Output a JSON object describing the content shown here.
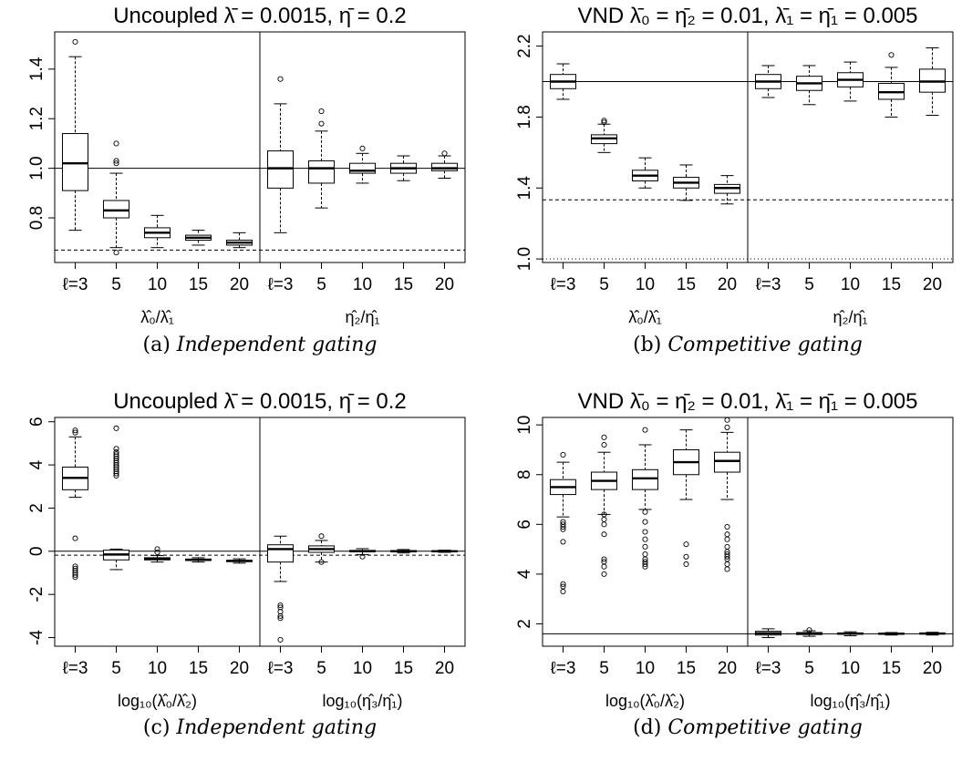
{
  "chart_data": [
    {
      "type": "boxplot",
      "title": "Uncoupled λ̄ = 0.0015, η̄ = 0.2",
      "caption": {
        "prefix": "(a)",
        "text": "Independent gating"
      },
      "ylim": [
        0.62,
        1.55
      ],
      "yticks": [
        "0.8",
        "1.0",
        "1.2",
        "1.4"
      ],
      "hlines": {
        "solid": 1.0,
        "dashed": 0.67,
        "dotted": null
      },
      "groups": [
        {
          "label": "λ̂₀/λ̂₁",
          "categories": [
            "ℓ=3",
            "5",
            "10",
            "15",
            "20"
          ],
          "boxes": [
            {
              "min": 0.75,
              "q1": 0.91,
              "median": 1.02,
              "q3": 1.14,
              "max": 1.45,
              "outliers": [
                1.51
              ]
            },
            {
              "min": 0.68,
              "q1": 0.8,
              "median": 0.83,
              "q3": 0.87,
              "max": 0.98,
              "outliers": [
                1.1,
                1.03,
                1.02,
                0.66
              ]
            },
            {
              "min": 0.68,
              "q1": 0.72,
              "median": 0.74,
              "q3": 0.76,
              "max": 0.81,
              "outliers": []
            },
            {
              "min": 0.69,
              "q1": 0.71,
              "median": 0.72,
              "q3": 0.73,
              "max": 0.75,
              "outliers": []
            },
            {
              "min": 0.68,
              "q1": 0.69,
              "median": 0.7,
              "q3": 0.71,
              "max": 0.74,
              "outliers": []
            }
          ]
        },
        {
          "label": "η̂₂/η̂₁",
          "categories": [
            "ℓ=3",
            "5",
            "10",
            "15",
            "20"
          ],
          "boxes": [
            {
              "min": 0.74,
              "q1": 0.92,
              "median": 1.0,
              "q3": 1.07,
              "max": 1.26,
              "outliers": [
                1.36
              ]
            },
            {
              "min": 0.84,
              "q1": 0.94,
              "median": 1.0,
              "q3": 1.03,
              "max": 1.15,
              "outliers": [
                1.23,
                1.18
              ]
            },
            {
              "min": 0.94,
              "q1": 0.98,
              "median": 0.99,
              "q3": 1.02,
              "max": 1.06,
              "outliers": [
                1.08
              ]
            },
            {
              "min": 0.95,
              "q1": 0.98,
              "median": 1.0,
              "q3": 1.02,
              "max": 1.05,
              "outliers": []
            },
            {
              "min": 0.96,
              "q1": 0.99,
              "median": 1.0,
              "q3": 1.02,
              "max": 1.05,
              "outliers": [
                1.06
              ]
            }
          ]
        }
      ]
    },
    {
      "type": "boxplot",
      "title": "VND λ̄₀ = η̄₂ = 0.01, λ̄₁ = η̄₁ = 0.005",
      "caption": {
        "prefix": "(b)",
        "text": "Competitive gating"
      },
      "ylim": [
        0.98,
        2.28
      ],
      "yticks": [
        "1.0",
        "1.4",
        "1.8",
        "2.2"
      ],
      "hlines": {
        "solid": 2.0,
        "dashed": 1.333,
        "dotted": 1.0
      },
      "groups": [
        {
          "label": "λ̂₀/λ̂₁",
          "categories": [
            "ℓ=3",
            "5",
            "10",
            "15",
            "20"
          ],
          "boxes": [
            {
              "min": 1.9,
              "q1": 1.96,
              "median": 2.0,
              "q3": 2.04,
              "max": 2.1,
              "outliers": []
            },
            {
              "min": 1.6,
              "q1": 1.65,
              "median": 1.68,
              "q3": 1.7,
              "max": 1.76,
              "outliers": [
                1.78,
                1.77
              ]
            },
            {
              "min": 1.4,
              "q1": 1.44,
              "median": 1.47,
              "q3": 1.5,
              "max": 1.57,
              "outliers": []
            },
            {
              "min": 1.33,
              "q1": 1.4,
              "median": 1.43,
              "q3": 1.46,
              "max": 1.53,
              "outliers": []
            },
            {
              "min": 1.31,
              "q1": 1.37,
              "median": 1.4,
              "q3": 1.42,
              "max": 1.47,
              "outliers": []
            }
          ]
        },
        {
          "label": "η̂₂/η̂₁",
          "categories": [
            "ℓ=3",
            "5",
            "10",
            "15",
            "20"
          ],
          "boxes": [
            {
              "min": 1.91,
              "q1": 1.96,
              "median": 2.0,
              "q3": 2.04,
              "max": 2.09,
              "outliers": []
            },
            {
              "min": 1.87,
              "q1": 1.95,
              "median": 1.99,
              "q3": 2.03,
              "max": 2.09,
              "outliers": []
            },
            {
              "min": 1.89,
              "q1": 1.97,
              "median": 2.01,
              "q3": 2.05,
              "max": 2.11,
              "outliers": []
            },
            {
              "min": 1.8,
              "q1": 1.9,
              "median": 1.94,
              "q3": 1.99,
              "max": 2.08,
              "outliers": [
                2.15
              ]
            },
            {
              "min": 1.81,
              "q1": 1.94,
              "median": 2.0,
              "q3": 2.07,
              "max": 2.19,
              "outliers": []
            }
          ]
        }
      ]
    },
    {
      "type": "boxplot",
      "title": "Uncoupled λ̄ = 0.0015, η̄ = 0.2",
      "caption": {
        "prefix": "(c)",
        "text": "Independent gating"
      },
      "ylim": [
        -4.4,
        6.2
      ],
      "yticks": [
        "-4",
        "-2",
        "0",
        "2",
        "4",
        "6"
      ],
      "hlines": {
        "solid": 0,
        "dashed": -0.18,
        "dotted": null
      },
      "groups": [
        {
          "label": "log₁₀(λ̂₀/λ̂₂)",
          "categories": [
            "ℓ=3",
            "5",
            "10",
            "15",
            "20"
          ],
          "boxes": [
            {
              "min": 2.5,
              "q1": 2.85,
              "median": 3.4,
              "q3": 3.9,
              "max": 5.3,
              "outliers": [
                5.6,
                5.5,
                0.6,
                -0.7,
                -0.8,
                -0.9,
                -1.0,
                -1.1,
                -1.2
              ]
            },
            {
              "min": -0.85,
              "q1": -0.4,
              "median": -0.15,
              "q3": 0.05,
              "max": 0.1,
              "outliers": [
                5.7,
                4.75,
                4.6,
                4.5,
                4.4,
                4.3,
                4.2,
                4.1,
                4.0,
                3.9,
                3.8,
                3.7,
                3.6,
                3.5
              ]
            },
            {
              "min": -0.5,
              "q1": -0.4,
              "median": -0.35,
              "q3": -0.3,
              "max": -0.2,
              "outliers": [
                0.1,
                -0.05
              ]
            },
            {
              "min": -0.5,
              "q1": -0.42,
              "median": -0.4,
              "q3": -0.36,
              "max": -0.3,
              "outliers": []
            },
            {
              "min": -0.55,
              "q1": -0.48,
              "median": -0.45,
              "q3": -0.42,
              "max": -0.35,
              "outliers": []
            }
          ]
        },
        {
          "label": "log₁₀(η̂₃/η̂₁)",
          "categories": [
            "ℓ=3",
            "5",
            "10",
            "15",
            "20"
          ],
          "boxes": [
            {
              "min": -1.4,
              "q1": -0.5,
              "median": 0.1,
              "q3": 0.3,
              "max": 0.7,
              "outliers": [
                -2.5,
                -2.6,
                -2.8,
                -3.0,
                -3.1,
                -4.1
              ]
            },
            {
              "min": -0.5,
              "q1": -0.05,
              "median": 0.1,
              "q3": 0.25,
              "max": 0.5,
              "outliers": [
                0.7,
                -0.5
              ]
            },
            {
              "min": -0.15,
              "q1": -0.02,
              "median": 0.0,
              "q3": 0.04,
              "max": 0.12,
              "outliers": [
                -0.25
              ]
            },
            {
              "min": -0.08,
              "q1": -0.03,
              "median": 0.0,
              "q3": 0.03,
              "max": 0.08,
              "outliers": []
            },
            {
              "min": -0.05,
              "q1": -0.02,
              "median": 0.0,
              "q3": 0.02,
              "max": 0.05,
              "outliers": []
            }
          ]
        }
      ]
    },
    {
      "type": "boxplot",
      "title": "VND λ̄₀ = η̄₂ = 0.01, λ̄₁ = η̄₁ = 0.005",
      "caption": {
        "prefix": "(d)",
        "text": "Competitive gating"
      },
      "ylim": [
        1.1,
        10.3
      ],
      "yticks": [
        "2",
        "4",
        "6",
        "8",
        "10"
      ],
      "hlines": {
        "solid": 1.6,
        "dashed": null,
        "dotted": null
      },
      "groups": [
        {
          "label": "log₁₀(λ̂₀/λ̂₂)",
          "categories": [
            "ℓ=3",
            "5",
            "10",
            "15",
            "20"
          ],
          "boxes": [
            {
              "min": 6.3,
              "q1": 7.2,
              "median": 7.5,
              "q3": 7.8,
              "max": 8.5,
              "outliers": [
                8.8,
                6.1,
                6.0,
                5.9,
                5.8,
                5.3,
                3.6,
                3.5,
                3.3
              ]
            },
            {
              "min": 6.4,
              "q1": 7.4,
              "median": 7.75,
              "q3": 8.1,
              "max": 8.9,
              "outliers": [
                9.5,
                9.2,
                6.4,
                6.2,
                6.0,
                5.6,
                4.6,
                4.5,
                4.3,
                4.0
              ]
            },
            {
              "min": 6.6,
              "q1": 7.4,
              "median": 7.85,
              "q3": 8.2,
              "max": 9.2,
              "outliers": [
                9.8,
                6.5,
                6.1,
                5.7,
                5.4,
                5.1,
                4.8,
                4.6,
                4.5,
                4.4,
                4.3
              ]
            },
            {
              "min": 7.0,
              "q1": 8.0,
              "median": 8.5,
              "q3": 9.0,
              "max": 9.8,
              "outliers": [
                5.2,
                4.7,
                4.4
              ]
            },
            {
              "min": 7.0,
              "q1": 8.1,
              "median": 8.55,
              "q3": 8.9,
              "max": 9.7,
              "outliers": [
                10.2,
                9.9,
                5.9,
                5.6,
                5.4,
                5.1,
                4.9,
                4.8,
                4.7,
                4.6,
                4.4,
                4.2
              ]
            }
          ]
        },
        {
          "label": "log₁₀(η̂₃/η̂₁)",
          "categories": [
            "ℓ=3",
            "5",
            "10",
            "15",
            "20"
          ],
          "boxes": [
            {
              "min": 1.45,
              "q1": 1.55,
              "median": 1.62,
              "q3": 1.7,
              "max": 1.8,
              "outliers": []
            },
            {
              "min": 1.5,
              "q1": 1.57,
              "median": 1.61,
              "q3": 1.65,
              "max": 1.72,
              "outliers": [
                1.75
              ]
            },
            {
              "min": 1.52,
              "q1": 1.58,
              "median": 1.61,
              "q3": 1.63,
              "max": 1.68,
              "outliers": []
            },
            {
              "min": 1.55,
              "q1": 1.59,
              "median": 1.6,
              "q3": 1.62,
              "max": 1.65,
              "outliers": []
            },
            {
              "min": 1.55,
              "q1": 1.59,
              "median": 1.61,
              "q3": 1.63,
              "max": 1.66,
              "outliers": []
            }
          ]
        }
      ]
    }
  ]
}
